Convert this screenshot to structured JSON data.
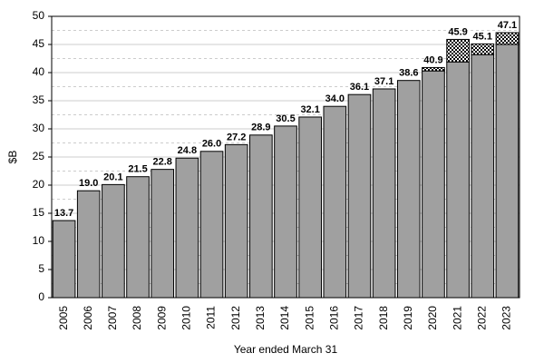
{
  "chart_data": {
    "type": "stacked_bar",
    "x_label": "Year ended March 31",
    "y_label": "$B",
    "categories": [
      "2005",
      "2006",
      "2007",
      "2008",
      "2009",
      "2010",
      "2011",
      "2012",
      "2013",
      "2014",
      "2015",
      "2016",
      "2017",
      "2018",
      "2019",
      "2020",
      "2021",
      "2022",
      "2023"
    ],
    "series": [
      {
        "color": "#a0a0a0",
        "values": [
          13.7,
          19.0,
          20.1,
          21.5,
          22.8,
          24.8,
          26.0,
          27.2,
          28.9,
          30.5,
          32.1,
          34.0,
          36.1,
          37.1,
          38.6,
          40.3,
          41.9,
          43.2,
          45.0
        ]
      },
      {
        "color": "hatch",
        "values": [
          null,
          null,
          null,
          null,
          null,
          null,
          null,
          null,
          null,
          null,
          null,
          null,
          null,
          null,
          null,
          0.6,
          4.0,
          1.9,
          2.1
        ]
      }
    ],
    "value_labels": [
      "13.7",
      "19.0",
      "20.1",
      "21.5",
      "22.8",
      "24.8",
      "26.0",
      "27.2",
      "28.9",
      "30.5",
      "32.1",
      "34.0",
      "36.1",
      "37.1",
      "38.6",
      "40.9",
      "45.9",
      "45.1",
      "47.1"
    ],
    "ylim": [
      0,
      50
    ],
    "yticks": [
      0,
      5,
      10,
      15,
      20,
      25,
      30,
      35,
      40,
      45,
      50
    ],
    "minor_yticks": [
      2.5,
      7.5,
      12.5,
      17.5,
      22.5,
      27.5,
      32.5,
      37.5,
      42.5,
      47.5
    ],
    "grid": true
  }
}
